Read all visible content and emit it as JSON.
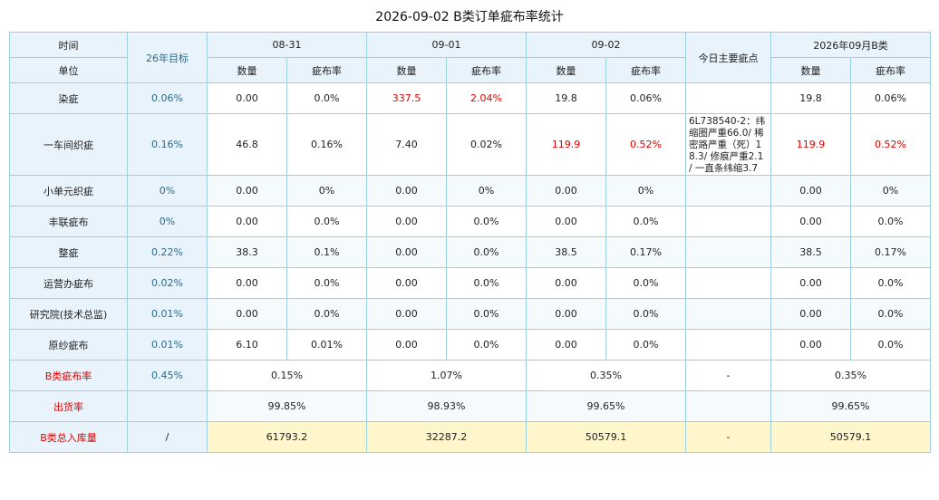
{
  "title": "2026-09-02 B类订单疵布率统计",
  "header": {
    "time_label": "时间",
    "unit_label": "单位",
    "target_label": "26年目标",
    "dates": [
      "08-31",
      "09-01",
      "09-02"
    ],
    "defects_label": "今日主要疵点",
    "month_label": "2026年09月B类",
    "qty_label": "数量",
    "rate_label": "疵布率"
  },
  "rows": [
    {
      "label": "染疵",
      "target": "0.06%",
      "d1q": "0.00",
      "d1r": "0.0%",
      "d2q": "337.5",
      "d2r": "2.04%",
      "d3q": "19.8",
      "d3r": "0.06%",
      "note": "",
      "mq": "19.8",
      "mr": "0.06%"
    },
    {
      "label": "一车间织疵",
      "target": "0.16%",
      "d1q": "46.8",
      "d1r": "0.16%",
      "d2q": "7.40",
      "d2r": "0.02%",
      "d3q": "119.9",
      "d3r": "0.52%",
      "note": "6L738540-2：纬缩圈严重66.0/ 稀密路严重（死）18.3/ 修痕严重2.1 / 一直条纬缩3.7",
      "mq": "119.9",
      "mr": "0.52%"
    },
    {
      "label": "小单元织疵",
      "target": "0%",
      "d1q": "0.00",
      "d1r": "0%",
      "d2q": "0.00",
      "d2r": "0%",
      "d3q": "0.00",
      "d3r": "0%",
      "note": "",
      "mq": "0.00",
      "mr": "0%"
    },
    {
      "label": "丰联疵布",
      "target": "0%",
      "d1q": "0.00",
      "d1r": "0.0%",
      "d2q": "0.00",
      "d2r": "0.0%",
      "d3q": "0.00",
      "d3r": "0.0%",
      "note": "",
      "mq": "0.00",
      "mr": "0.0%"
    },
    {
      "label": "整疵",
      "target": "0.22%",
      "d1q": "38.3",
      "d1r": "0.1%",
      "d2q": "0.00",
      "d2r": "0.0%",
      "d3q": "38.5",
      "d3r": "0.17%",
      "note": "",
      "mq": "38.5",
      "mr": "0.17%"
    },
    {
      "label": "运营办疵布",
      "target": "0.02%",
      "d1q": "0.00",
      "d1r": "0.0%",
      "d2q": "0.00",
      "d2r": "0.0%",
      "d3q": "0.00",
      "d3r": "0.0%",
      "note": "",
      "mq": "0.00",
      "mr": "0.0%"
    },
    {
      "label": "研究院(技术总监)",
      "target": "0.01%",
      "d1q": "0.00",
      "d1r": "0.0%",
      "d2q": "0.00",
      "d2r": "0.0%",
      "d3q": "0.00",
      "d3r": "0.0%",
      "note": "",
      "mq": "0.00",
      "mr": "0.0%"
    },
    {
      "label": "原纱疵布",
      "target": "0.01%",
      "d1q": "6.10",
      "d1r": "0.01%",
      "d2q": "0.00",
      "d2r": "0.0%",
      "d3q": "0.00",
      "d3r": "0.0%",
      "note": "",
      "mq": "0.00",
      "mr": "0.0%"
    }
  ],
  "summary": {
    "defect_rate": {
      "label": "B类疵布率",
      "target": "0.45%",
      "d1": "0.15%",
      "d2": "1.07%",
      "d3": "0.35%",
      "note": "-",
      "month": "0.35%"
    },
    "shipping_rate": {
      "label": "出货率",
      "target": "",
      "d1": "99.85%",
      "d2": "98.93%",
      "d3": "99.65%",
      "note": "",
      "month": "99.65%"
    },
    "total_storage": {
      "label": "B类总入库量",
      "target": "/",
      "d1": "61793.2",
      "d2": "32287.2",
      "d3": "50579.1",
      "note": "-",
      "month": "50579.1"
    }
  },
  "colors": {
    "highlight_text": "#e00000",
    "header_bg": "#e8f3fb",
    "border": "#9fcfe3",
    "storage_bg": "#fff6cc"
  }
}
